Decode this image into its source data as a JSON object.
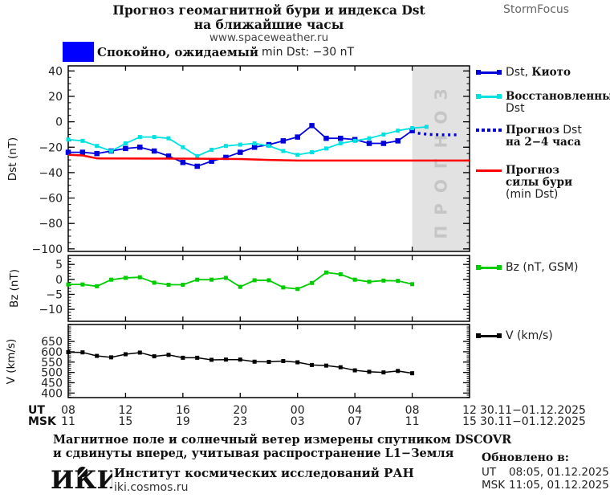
{
  "header": {
    "brand": "StormFocus",
    "title_line1": "Прогноз геомагнитной бури и индекса Dst",
    "title_line2": "на ближайшие часы",
    "site": "www.spaceweather.ru"
  },
  "status": {
    "label": "Спокойно, ожидаемый",
    "value": "min Dst: −30 nT"
  },
  "colors": {
    "quiet_box": "#0000ff",
    "kyoto": "#0000dd",
    "restored": "#00e1e1",
    "forecast_dst": "#0000dd",
    "storm_forecast": "#ff0000",
    "bz": "#00cc00",
    "v": "#000000",
    "forecast_region": "#e2e2e2",
    "watermark": "#c5c5c5"
  },
  "legend": {
    "kyoto_latin": "Dst,",
    "kyoto_cyr": "Киото",
    "restored_line1": "Восстановленный",
    "restored_line2": "Dst",
    "forecast_line1_cyr": "Прогноз",
    "forecast_line1_lat": "Dst",
    "forecast_line2": "на 2−4 часа",
    "storm_line1": "Прогноз",
    "storm_line2": "силы бури",
    "storm_line3": "(min Dst)",
    "bz_label": "Bz (nT, GSM)",
    "v_label": "V (km/s)"
  },
  "footer": {
    "caption_line1": "Магнитное поле и солнечный ветер измерены спутником DSCOVR",
    "caption_line2": "и сдвинуты вперед, учитывая распространение L1−Земля",
    "logo": "ИКИ",
    "institute": "Институт космических исследований РАН",
    "site": "iki.cosmos.ru",
    "updated_label": "Обновлено в:",
    "updated_ut_label": "UT",
    "updated_ut_value": "08:05, 01.12.2025",
    "updated_msk_label": "MSK",
    "updated_msk_value": "11:05, 01.12.2025"
  },
  "chart_data": {
    "type": "line",
    "x_axis": {
      "ut_label": "UT",
      "msk_label": "MSK",
      "ut_ticks": [
        "08",
        "12",
        "16",
        "20",
        "00",
        "04",
        "08",
        "12"
      ],
      "msk_ticks": [
        "11",
        "15",
        "19",
        "23",
        "03",
        "07",
        "11",
        "15"
      ],
      "date_range": "30.11−01.12.2025",
      "xlim_hours": [
        0,
        28
      ],
      "tick_step_hours": 4
    },
    "panels": [
      {
        "id": "dst",
        "ylabel": "Dst (nT)",
        "ylim": [
          -102,
          44
        ],
        "yticks": [
          40,
          20,
          0,
          -20,
          -40,
          -60,
          -80,
          -100
        ],
        "minor_step": 5,
        "forecast_region": {
          "from_hour": 24,
          "to_hour": 28,
          "label": "ПРОГНОЗ"
        },
        "series": [
          {
            "name": "Dst, Киото",
            "color": "#0000dd",
            "marker": 6.5,
            "width": 1.8,
            "x0": 0,
            "step": 1,
            "values": [
              -24,
              -24,
              -25,
              -23,
              -21,
              -20,
              -23,
              -27,
              -32,
              -35,
              -31,
              -28,
              -24,
              -20,
              -18,
              -15,
              -12,
              -3,
              -13,
              -13,
              -14,
              -17,
              -17,
              -15,
              -7
            ]
          },
          {
            "name": "Восстановленный Dst",
            "color": "#00e1e1",
            "marker": 5,
            "width": 1.8,
            "x0": 0,
            "step": 1,
            "values": [
              -14,
              -15,
              -19,
              -23,
              -17,
              -12,
              -12,
              -13,
              -20,
              -27,
              -22,
              -19,
              -18,
              -17,
              -19,
              -23,
              -26,
              -24,
              -21,
              -17,
              -15,
              -13,
              -10,
              -7,
              -5,
              -4
            ]
          },
          {
            "name": "Прогноз Dst на 2−4 часа",
            "color": "#0000dd",
            "style": "dotted",
            "width": 3.5,
            "points": [
              [
                24.4,
                -9
              ],
              [
                25.2,
                -10
              ],
              [
                26.2,
                -10.3
              ],
              [
                27.2,
                -10.3
              ]
            ]
          },
          {
            "name": "Прогноз силы бури (min Dst)",
            "color": "#ff0000",
            "width": 2.5,
            "points": [
              [
                0,
                -26
              ],
              [
                1,
                -26.5
              ],
              [
                2,
                -28.8
              ],
              [
                8,
                -29
              ],
              [
                12,
                -29.3
              ],
              [
                14,
                -30
              ],
              [
                16,
                -30.5
              ],
              [
                28,
                -30.5
              ]
            ]
          }
        ]
      },
      {
        "id": "bz",
        "ylabel": "Bz (nT)",
        "ylim": [
          -14,
          8
        ],
        "yticks": [
          5,
          0,
          -5,
          -10
        ],
        "minor_step": 1,
        "series": [
          {
            "name": "Bz (nT, GSM)",
            "color": "#00cc00",
            "marker": 5,
            "width": 1.8,
            "x0": 0,
            "step": 1,
            "values": [
              -1.7,
              -1.7,
              -2.3,
              -0.1,
              0.5,
              0.7,
              -1.1,
              -1.8,
              -1.8,
              -0.1,
              -0.1,
              0.5,
              -2.5,
              -0.3,
              -0.3,
              -2.7,
              -3.2,
              -1.2,
              2.3,
              1.7,
              -0.1,
              -0.8,
              -0.4,
              -0.5,
              -1.6
            ]
          }
        ]
      },
      {
        "id": "v",
        "ylabel": "V (km/s)",
        "ylim": [
          378,
          732
        ],
        "yticks": [
          650,
          600,
          550,
          500,
          450,
          400
        ],
        "minor_step": 10,
        "series": [
          {
            "name": "V (km/s)",
            "color": "#000000",
            "marker": 5,
            "width": 1.5,
            "x0": 0,
            "step": 1,
            "values": [
              598,
              597,
              580,
              573,
              588,
              596,
              578,
              585,
              571,
              571,
              561,
              562,
              562,
              552,
              551,
              555,
              549,
              536,
              533,
              525,
              510,
              503,
              500,
              507,
              496
            ]
          }
        ]
      }
    ]
  }
}
